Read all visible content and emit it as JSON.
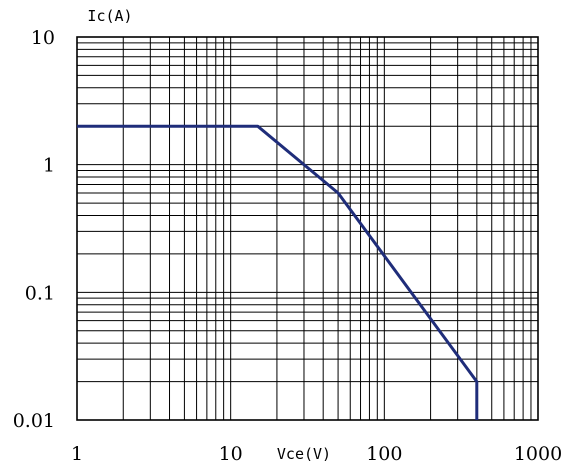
{
  "chart_data": {
    "type": "line",
    "title": "",
    "xlabel": "Vce(V)",
    "ylabel": "Ic(A)",
    "xscale": "log",
    "yscale": "log",
    "xlim": [
      1,
      1000
    ],
    "ylim": [
      0.01,
      10
    ],
    "grid": true,
    "legend": "none",
    "x_ticks": [
      {
        "value": 1,
        "label": "1"
      },
      {
        "value": 10,
        "label": "10"
      },
      {
        "value": 100,
        "label": "100"
      },
      {
        "value": 1000,
        "label": "1000"
      }
    ],
    "y_ticks": [
      {
        "value": 10,
        "label": "10"
      },
      {
        "value": 1,
        "label": "1"
      },
      {
        "value": 0.1,
        "label": "0.1"
      },
      {
        "value": 0.01,
        "label": "0.01"
      }
    ],
    "series": [
      {
        "color": "#1f2d7a",
        "points": [
          {
            "x": 1,
            "y": 2
          },
          {
            "x": 15,
            "y": 2
          },
          {
            "x": 50,
            "y": 0.6
          },
          {
            "x": 400,
            "y": 0.02
          },
          {
            "x": 400,
            "y": 0.01
          }
        ]
      }
    ]
  }
}
